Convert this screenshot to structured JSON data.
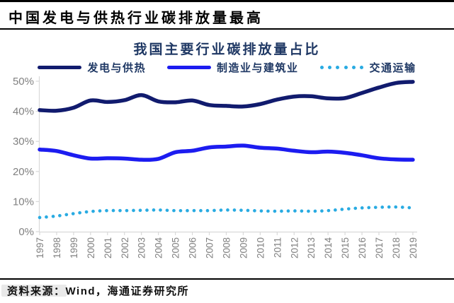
{
  "page": {
    "title": "中国发电与供热行业碳排放量最高",
    "source_note": "资料来源：Wind，海通证券研究所"
  },
  "chart_data": {
    "type": "line",
    "title": "我国主要行业碳排放量占比",
    "x": [
      1997,
      1998,
      1999,
      2000,
      2001,
      2002,
      2003,
      2004,
      2005,
      2006,
      2007,
      2008,
      2009,
      2010,
      2011,
      2012,
      2013,
      2014,
      2015,
      2016,
      2017,
      2018,
      2019
    ],
    "series": [
      {
        "name": "发电与供热",
        "style": "solid",
        "color": "#111b6e",
        "values": [
          40.4,
          40.2,
          41.2,
          43.6,
          43.1,
          43.7,
          45.4,
          43.3,
          43.0,
          43.6,
          42.1,
          41.8,
          41.6,
          42.4,
          43.9,
          44.9,
          45.0,
          44.3,
          44.4,
          46.1,
          47.9,
          49.4,
          49.8
        ]
      },
      {
        "name": "制造业与建筑业",
        "style": "solid",
        "color": "#1c1cf0",
        "values": [
          27.3,
          26.8,
          25.4,
          24.3,
          24.4,
          24.3,
          23.9,
          24.2,
          26.4,
          26.9,
          28.0,
          28.3,
          28.6,
          27.9,
          27.6,
          26.9,
          26.4,
          26.6,
          26.2,
          25.4,
          24.4,
          24.0,
          23.9
        ]
      },
      {
        "name": "交通运输",
        "style": "dotted",
        "color": "#29abe2",
        "values": [
          4.7,
          5.2,
          6.0,
          6.7,
          7.0,
          7.0,
          7.1,
          7.2,
          7.0,
          7.0,
          7.0,
          7.2,
          7.1,
          6.9,
          6.8,
          6.9,
          6.8,
          7.0,
          7.5,
          7.9,
          8.1,
          8.2,
          7.9
        ]
      }
    ],
    "ylim": [
      0,
      50
    ],
    "ytick_labels": [
      "0%",
      "10%",
      "20%",
      "30%",
      "40%",
      "50%"
    ],
    "unit": "%",
    "grid": false,
    "legend_position": "top",
    "axis_color": "#d9d9d9",
    "tick_label_color": "#808080"
  }
}
